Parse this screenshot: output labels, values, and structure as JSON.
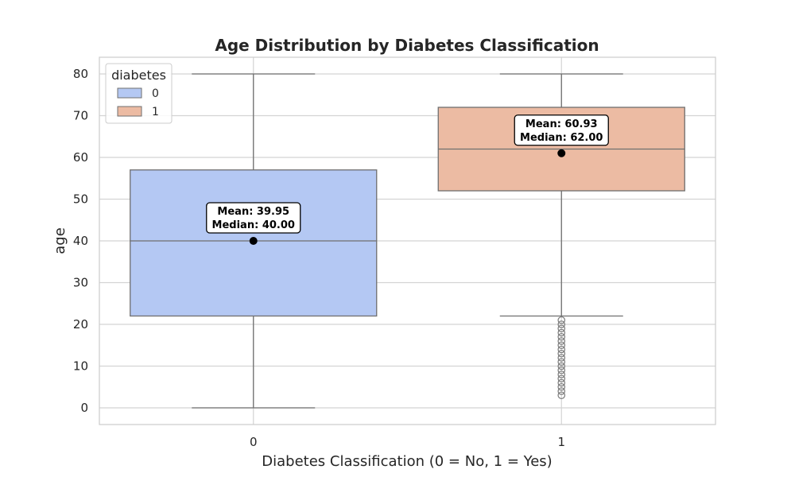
{
  "chart_data": {
    "type": "box",
    "title": "Age Distribution by Diabetes Classification",
    "xlabel": "Diabetes Classification (0 = No, 1 = Yes)",
    "ylabel": "age",
    "categories": [
      "0",
      "1"
    ],
    "ylim": [
      -4,
      84
    ],
    "yticks": [
      0,
      10,
      20,
      30,
      40,
      50,
      60,
      70,
      80
    ],
    "grid": true,
    "legend": {
      "title": "diabetes",
      "placement": "top-left",
      "entries": [
        "0",
        "1"
      ]
    },
    "series": [
      {
        "category": "0",
        "color": "#b4c8f3",
        "whisker_low": 0,
        "q1": 22,
        "median": 40,
        "q3": 57,
        "whisker_high": 80,
        "mean": 40,
        "outliers": [],
        "annotation_mean": "Mean: 39.95",
        "annotation_median": "Median: 40.00"
      },
      {
        "category": "1",
        "color": "#ecbba3",
        "whisker_low": 22,
        "q1": 52,
        "median": 62,
        "q3": 72,
        "whisker_high": 80,
        "mean": 61,
        "outliers": [
          3,
          4,
          5,
          6,
          7,
          8,
          9,
          10,
          11,
          12,
          13,
          14,
          15,
          16,
          17,
          18,
          19,
          20,
          21
        ],
        "annotation_mean": "Mean: 60.93",
        "annotation_median": "Median: 62.00"
      }
    ]
  }
}
